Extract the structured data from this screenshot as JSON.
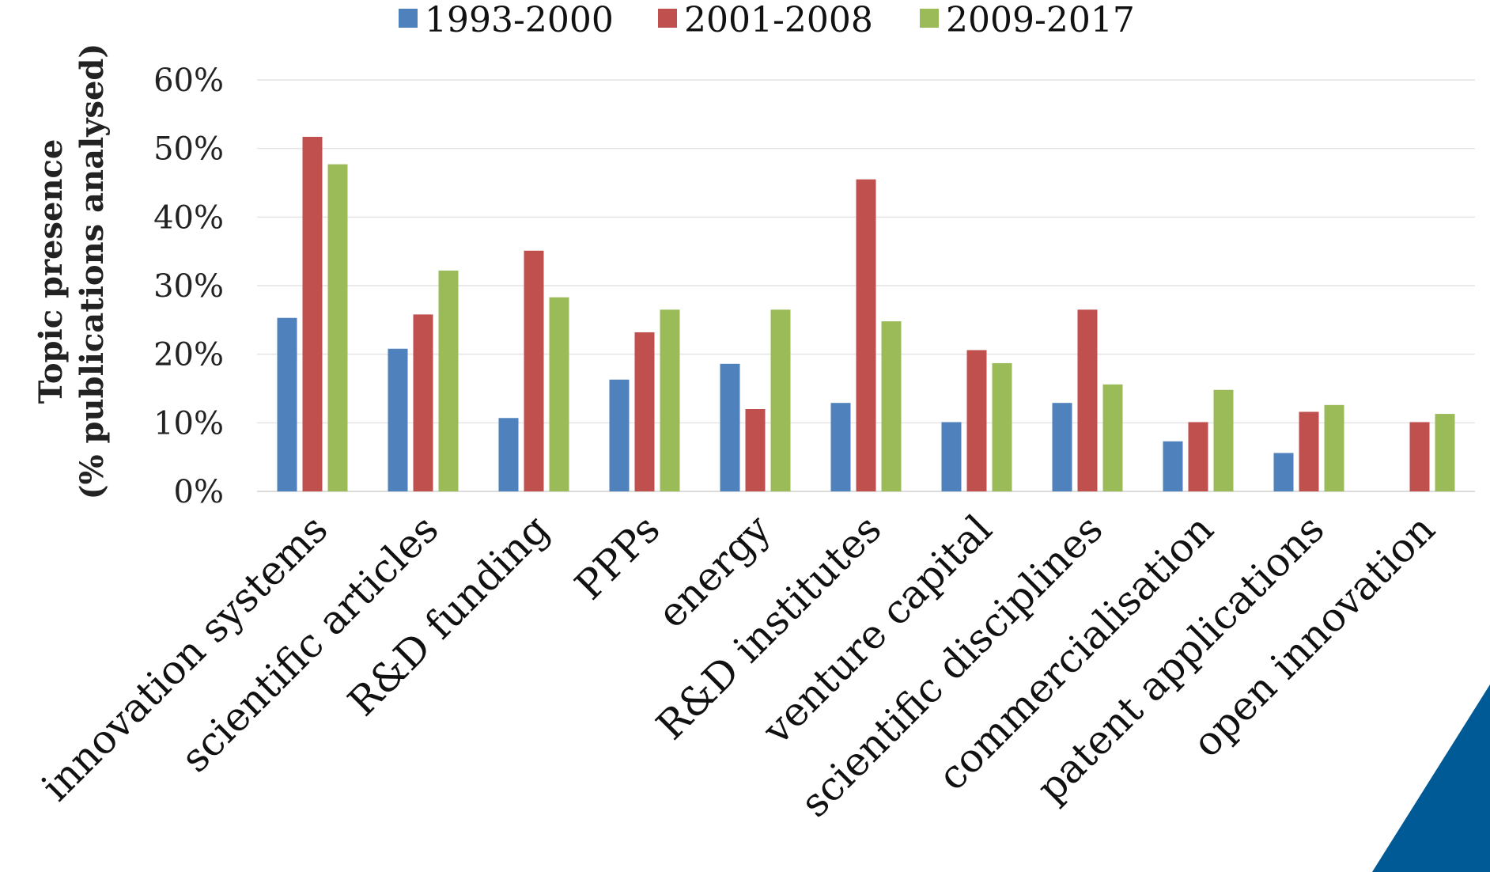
{
  "chart_data": {
    "type": "bar",
    "title": "",
    "xlabel": "",
    "ylabel_lines": [
      "Topic presence",
      "(% publications analysed)"
    ],
    "ylim": [
      0,
      60
    ],
    "yticks": [
      "0%",
      "10%",
      "20%",
      "30%",
      "40%",
      "50%",
      "60%"
    ],
    "ytick_values": [
      0,
      10,
      20,
      30,
      40,
      50,
      60
    ],
    "grid": true,
    "legend_position": "top",
    "categories": [
      "innovation systems",
      "scientific articles",
      "R&D funding",
      "PPPs",
      "energy",
      "R&D institutes",
      "venture capital",
      "scientific disciplines",
      "commercialisation",
      "patent applications",
      "open innovation"
    ],
    "series": [
      {
        "name": "1993-2000",
        "color": "#4f81bd",
        "values": [
          25.3,
          20.8,
          10.7,
          16.3,
          18.6,
          12.9,
          10.1,
          12.9,
          7.3,
          5.6,
          0
        ]
      },
      {
        "name": "2001-2008",
        "color": "#c0504d",
        "values": [
          51.7,
          25.8,
          35.1,
          23.2,
          12.0,
          45.5,
          20.6,
          26.5,
          10.1,
          11.6,
          10.1
        ]
      },
      {
        "name": "2009-2017",
        "color": "#9bbb59",
        "values": [
          47.7,
          32.2,
          28.3,
          26.5,
          26.5,
          24.8,
          18.7,
          15.6,
          14.8,
          12.6,
          11.3
        ]
      }
    ]
  },
  "decoration": {
    "corner_color": "#005a96"
  }
}
